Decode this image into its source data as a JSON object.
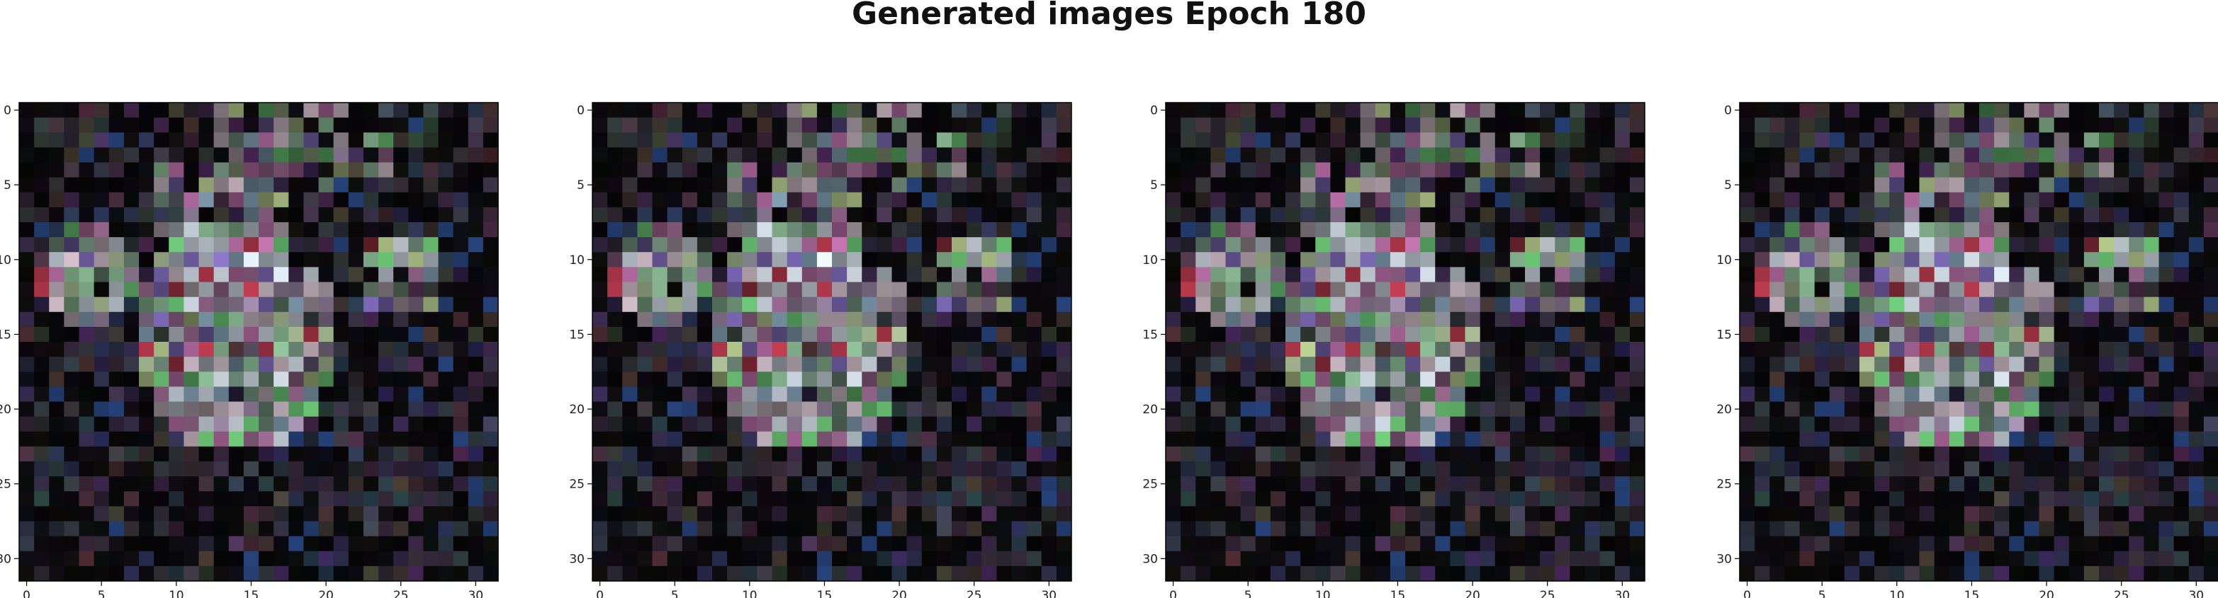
{
  "figure": {
    "title": "Generated images Epoch 180"
  },
  "chart_data": [
    {
      "type": "heatmap",
      "title": "",
      "xlabel": "",
      "ylabel": "",
      "xlim": [
        -0.5,
        31.5
      ],
      "ylim": [
        31.5,
        -0.5
      ],
      "xticks": [
        0,
        5,
        10,
        15,
        20,
        25,
        30
      ],
      "yticks": [
        0,
        5,
        10,
        15,
        20,
        25,
        30
      ],
      "grid": false,
      "pixels": "32x32 RGB"
    },
    {
      "type": "heatmap",
      "title": "",
      "xlabel": "",
      "ylabel": "",
      "xlim": [
        -0.5,
        31.5
      ],
      "ylim": [
        31.5,
        -0.5
      ],
      "xticks": [
        0,
        5,
        10,
        15,
        20,
        25,
        30
      ],
      "yticks": [
        0,
        5,
        10,
        15,
        20,
        25,
        30
      ],
      "grid": false,
      "pixels": "32x32 RGB"
    },
    {
      "type": "heatmap",
      "title": "",
      "xlabel": "",
      "ylabel": "",
      "xlim": [
        -0.5,
        31.5
      ],
      "ylim": [
        31.5,
        -0.5
      ],
      "xticks": [
        0,
        5,
        10,
        15,
        20,
        25,
        30
      ],
      "yticks": [
        0,
        5,
        10,
        15,
        20,
        25,
        30
      ],
      "grid": false,
      "pixels": "32x32 RGB"
    },
    {
      "type": "heatmap",
      "title": "",
      "xlabel": "",
      "ylabel": "",
      "xlim": [
        -0.5,
        31.5
      ],
      "ylim": [
        31.5,
        -0.5
      ],
      "xticks": [
        0,
        5,
        10,
        15,
        20,
        25,
        30
      ],
      "yticks": [
        0,
        5,
        10,
        15,
        20,
        25,
        30
      ],
      "grid": false,
      "pixels": "32x32 RGB"
    }
  ]
}
